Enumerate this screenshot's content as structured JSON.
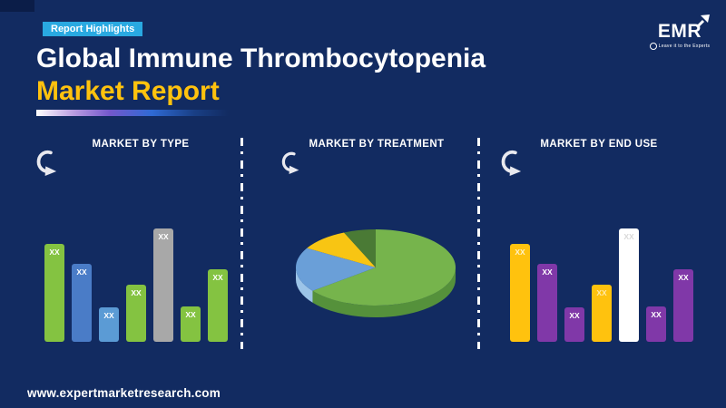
{
  "badge": {
    "label": "Report Highlights",
    "bg_color": "#29A9E1"
  },
  "title": {
    "line1": "Global Immune Thrombocytopenia",
    "line2": "Market Report",
    "line2_color": "#FFC20E"
  },
  "logo": {
    "name": "EMR",
    "tagline": "Leave it to the Experts"
  },
  "footer": {
    "url": "www.expertmarketresearch.com"
  },
  "colors": {
    "background": "#122B61",
    "corner_accent": "#0B1D48",
    "divider": "#FFFFFF",
    "accent_cyan": "#29A9E1",
    "accent_yellow": "#FFC20E"
  },
  "chart_data": [
    {
      "type": "bar",
      "title": "MARKET BY TYPE",
      "values_hidden": true,
      "bar_labels": [
        "XX",
        "XX",
        "XX",
        "XX",
        "XX",
        "XX",
        "XX"
      ],
      "relative_heights": [
        86,
        69,
        30,
        50,
        100,
        31,
        64
      ],
      "bar_colors": [
        "#84C341",
        "#4A7CC7",
        "#5B9BD5",
        "#84C341",
        "#A8A8A8",
        "#84C341",
        "#84C341"
      ],
      "label_colors": [
        "#FFFFFF",
        "#FFFFFF",
        "#FFFFFF",
        "#FFFFFF",
        "#FFFFFF",
        "#FFFFFF",
        "#FFFFFF"
      ],
      "note": "values masked as XX in source"
    },
    {
      "type": "pie",
      "title": "MARKET BY TREATMENT",
      "values_pct": [
        64.5,
        19,
        10,
        6.5
      ],
      "slice_colors": [
        "#76B44C",
        "#6A9FD8",
        "#F8C513",
        "#4A7A35"
      ],
      "side_colors": [
        "#55913B",
        "#9CC4E8",
        "#D9A400",
        "#3E6227"
      ],
      "labels_visible": false,
      "style": "3d-pie"
    },
    {
      "type": "bar",
      "title": "MARKET BY END USE",
      "values_hidden": true,
      "bar_labels": [
        "XX",
        "XX",
        "XX",
        "XX",
        "XX",
        "XX",
        "XX"
      ],
      "relative_heights": [
        86,
        69,
        30,
        50,
        100,
        31,
        64
      ],
      "bar_colors": [
        "#FFC20E",
        "#8038A8",
        "#8038A8",
        "#FFC20E",
        "#FFFFFF",
        "#8038A8",
        "#8038A8"
      ],
      "label_colors": [
        "#FFF3C8",
        "#FFFFFF",
        "#FFFFFF",
        "#FFE9A8",
        "#D9D9D9",
        "#FFFFFF",
        "#FFFFFF"
      ],
      "note": "values masked as XX in source"
    }
  ]
}
